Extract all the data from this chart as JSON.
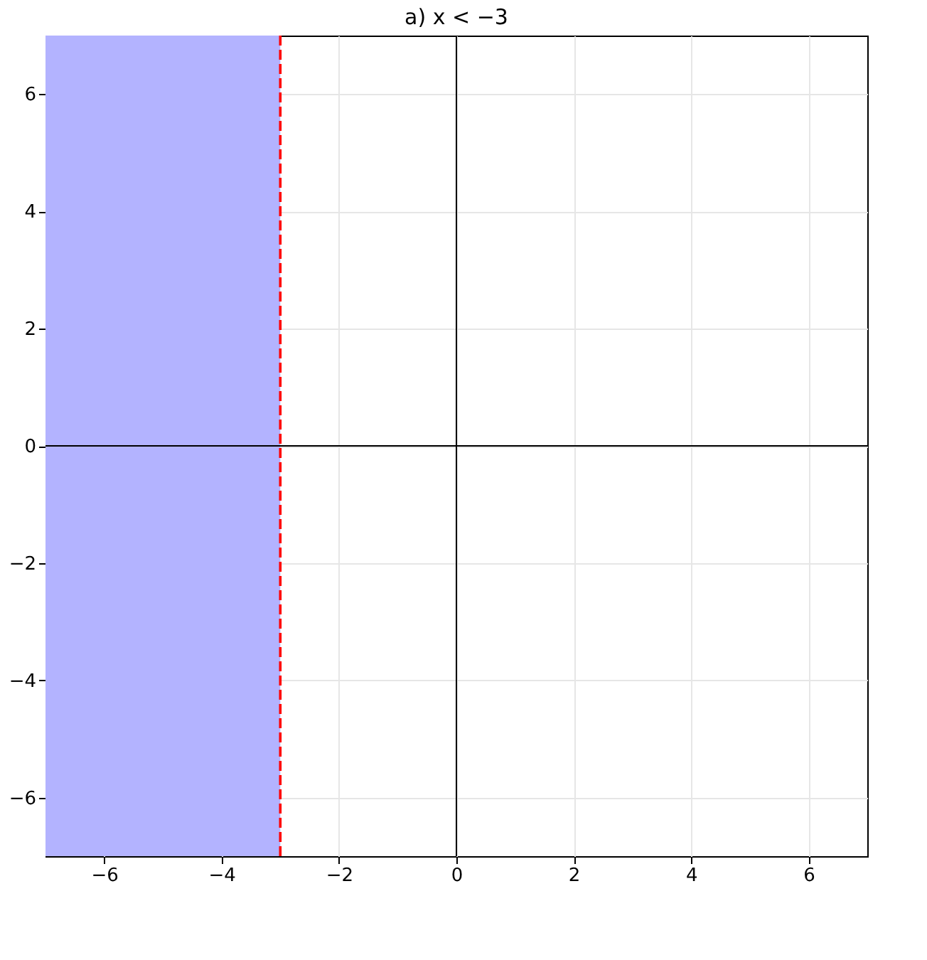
{
  "chart_data": {
    "type": "line",
    "title": "a) x < −3",
    "xlim": [
      -7,
      7
    ],
    "ylim": [
      -7,
      7
    ],
    "xticks": [
      -6,
      -4,
      -2,
      0,
      2,
      4,
      6
    ],
    "yticks": [
      -6,
      -4,
      -2,
      0,
      2,
      4,
      6
    ],
    "grid": true,
    "series": [
      {
        "x": [
          0,
          0
        ],
        "values": [
          -7,
          7
        ],
        "color": "#000000",
        "line_style": "solid"
      },
      {
        "x": [
          -7,
          7
        ],
        "values": [
          0,
          0
        ],
        "color": "#000000",
        "line_style": "solid"
      },
      {
        "x": [
          -3,
          -3
        ],
        "values": [
          -7,
          7
        ],
        "color": "#ff0000",
        "line_style": "dashed"
      }
    ],
    "bands": [
      {
        "axis": "x",
        "from": -7,
        "to": -3,
        "color": "#b3b3ff"
      }
    ]
  }
}
